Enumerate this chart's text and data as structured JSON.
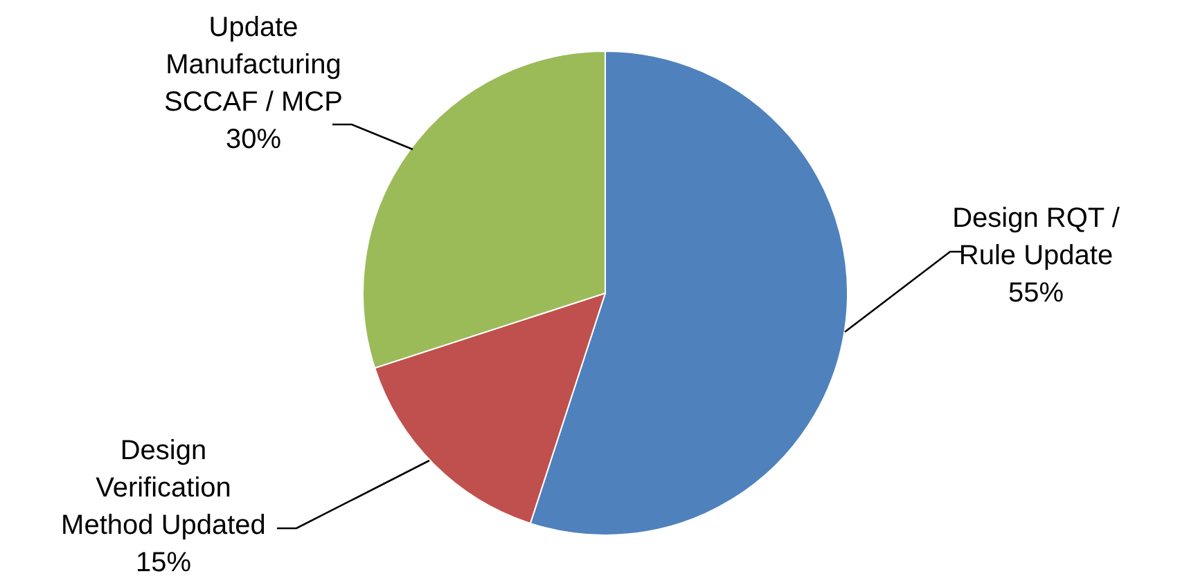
{
  "chart_data": {
    "type": "pie",
    "categories": [
      "Design RQT / Rule Update",
      "Design Verification Method Updated",
      "Update Manufacturing SCCAF / MCP"
    ],
    "values": [
      55,
      15,
      30
    ],
    "colors": [
      "#4f81bd",
      "#c0504d",
      "#9bbb59"
    ],
    "value_labels": [
      "55%",
      "15%",
      "30%"
    ]
  }
}
